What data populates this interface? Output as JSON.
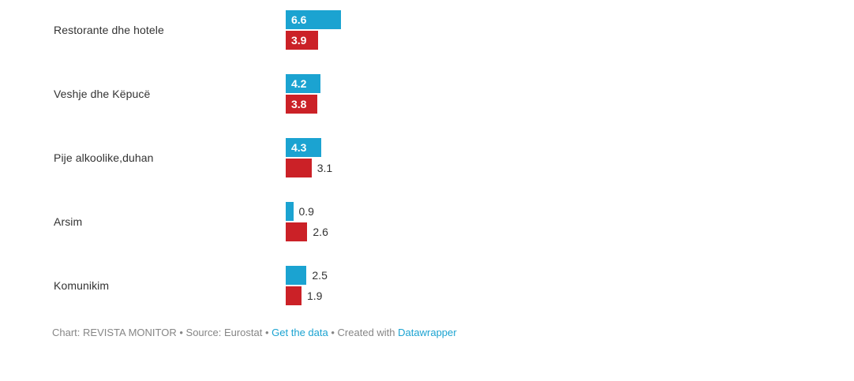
{
  "chart_data": {
    "type": "bar",
    "orientation": "horizontal",
    "title": "",
    "categories": [
      "Restorante dhe hotele",
      "Veshje dhe Këpucë",
      "Pije alkoolike,duhan",
      "Arsim",
      "Komunikim"
    ],
    "series": [
      {
        "name": "blue-series",
        "color": "#1BA3D1",
        "values": [
          6.6,
          4.2,
          4.3,
          0.9,
          2.5
        ]
      },
      {
        "name": "red-series",
        "color": "#CB2127",
        "values": [
          3.9,
          3.8,
          3.1,
          2.6,
          1.9
        ]
      }
    ],
    "xlim": [
      0,
      7
    ],
    "grid": false,
    "legend": false,
    "value_labels": "each bar labeled; label sits inside bar (white bold) when bar is wide enough, otherwise to the right of bar (dark)"
  },
  "footer": {
    "chart_credit": "Chart: REVISTA MONITOR",
    "separator": "•",
    "source": "Source: Eurostat",
    "get_data_link": "Get the data",
    "created_with": "Created with",
    "datawrapper_link": "Datawrapper"
  },
  "colors": {
    "series_blue": "#1BA3D1",
    "series_red": "#CB2127",
    "category_text": "#333333",
    "outside_value_text": "#333333",
    "inside_value_text": "#FFFFFF",
    "footer_text": "#868686",
    "link": "#1BA3D1"
  }
}
